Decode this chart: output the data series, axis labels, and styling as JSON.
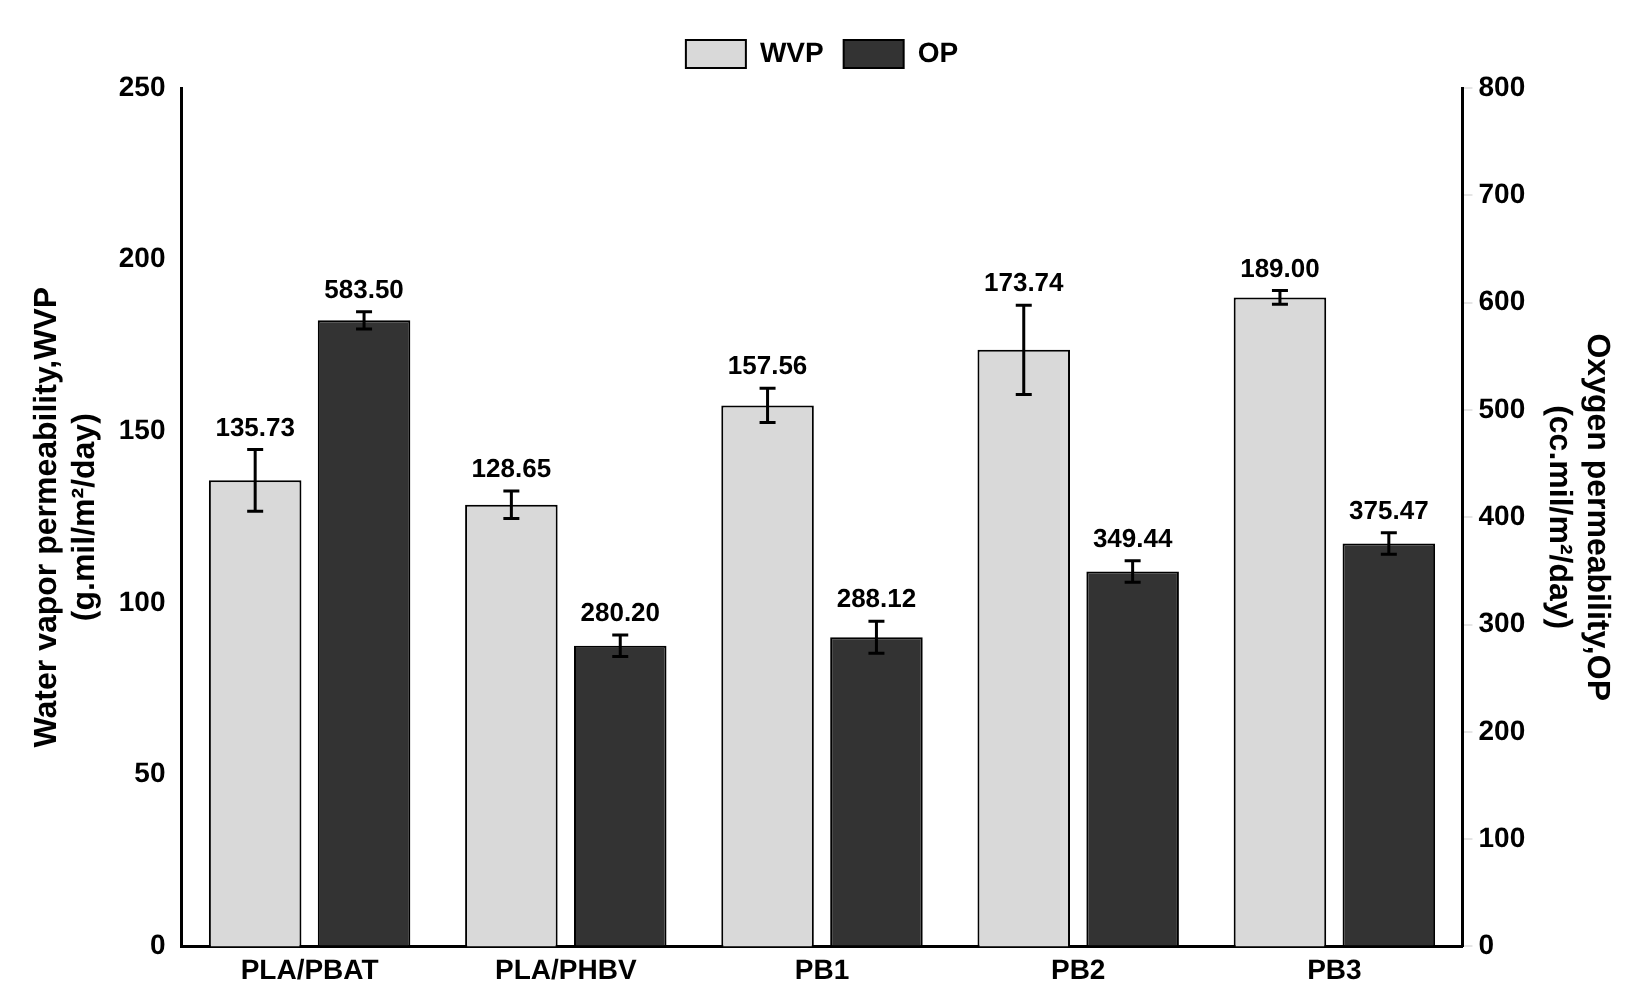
{
  "chart_data": {
    "type": "bar",
    "categories": [
      "PLA/PBAT",
      "PLA/PHBV",
      "PB1",
      "PB2",
      "PB3"
    ],
    "series": [
      {
        "name": "WVP",
        "color": "#d9d9d9",
        "values": [
          135.73,
          128.65,
          157.56,
          173.74,
          189.0
        ],
        "value_labels": [
          "135.73",
          "128.65",
          "157.56",
          "173.74",
          "189.00"
        ],
        "errors": [
          9,
          4,
          5,
          13,
          2
        ]
      },
      {
        "name": "OP",
        "color": "#333333",
        "axis": "y2",
        "values": [
          583.5,
          280.2,
          288.12,
          349.44,
          375.47
        ],
        "value_labels": [
          "583.50",
          "280.20",
          "288.12",
          "349.44",
          "375.47"
        ],
        "errors": [
          8,
          10,
          15,
          10,
          10
        ]
      }
    ],
    "ylabel": "Water vapor permeability,WVP\n(g.mil/m²/day)",
    "y2label": "Oxygen permeability,OP\n(cc.mil/m²/day)",
    "ylim": [
      0,
      250
    ],
    "yticks": [
      0,
      50,
      100,
      150,
      200,
      250
    ],
    "y2lim": [
      0,
      800
    ],
    "y2ticks": [
      0,
      100,
      200,
      300,
      400,
      500,
      600,
      700,
      800
    ],
    "grid": false,
    "legend": "top"
  }
}
